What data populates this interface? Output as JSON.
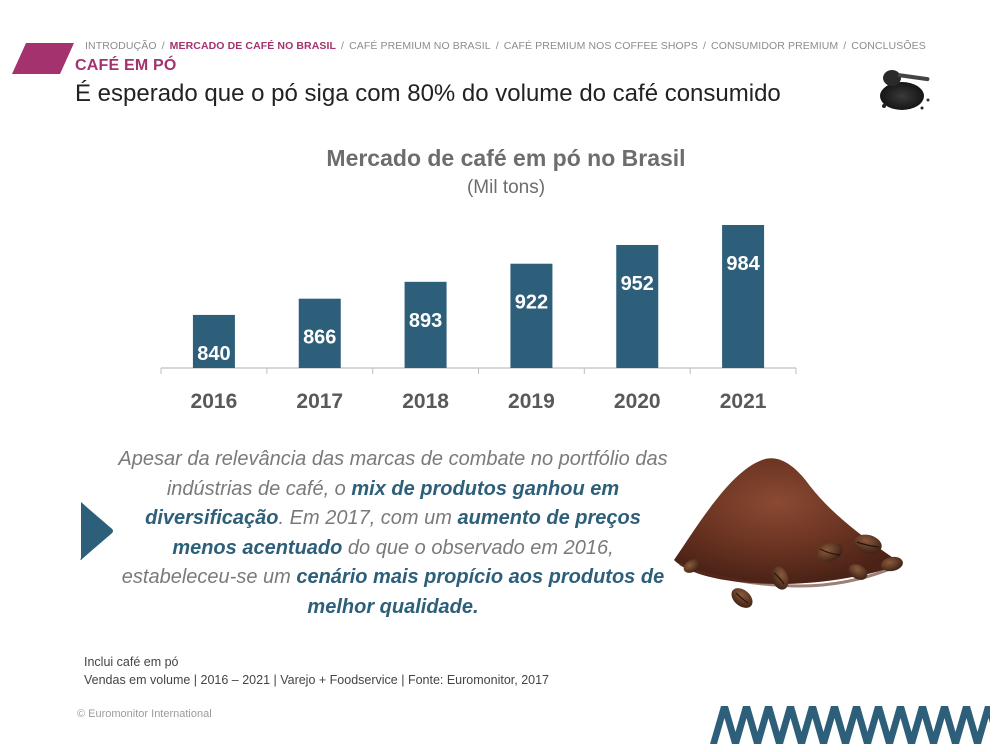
{
  "header": {
    "breadcrumb": [
      {
        "label": "Introdução",
        "active": false
      },
      {
        "label": "Mercado de café no Brasil",
        "active": true
      },
      {
        "label": "Café premium no Brasil",
        "active": false
      },
      {
        "label": "Café premium nos coffee shops",
        "active": false
      },
      {
        "label": "Consumidor premium",
        "active": false
      },
      {
        "label": "Conclusões",
        "active": false
      }
    ],
    "separator": "/",
    "section_label": "CAFÉ EM PÓ",
    "title": "É esperado que o pó siga com 80% do volume do café consumido"
  },
  "colors": {
    "accent": "#a3326f",
    "bar": "#2e5f7a",
    "highlight": "#2e5f7a",
    "muted_text": "#7a7a7a"
  },
  "chart_data": {
    "type": "bar",
    "title": "Mercado de café em pó no Brasil",
    "subtitle": "(Mil tons)",
    "categories": [
      "2016",
      "2017",
      "2018",
      "2019",
      "2020",
      "2021"
    ],
    "values": [
      840,
      866,
      893,
      922,
      952,
      984
    ],
    "data_labels": [
      "840",
      "866",
      "893",
      "922",
      "952",
      "984"
    ],
    "ylim": [
      755,
      1000
    ],
    "grid": false,
    "legend": "none"
  },
  "callout": {
    "segments": [
      {
        "text": "Apesar da relevância das marcas de combate no portfólio das indústrias de café, o ",
        "highlight": false
      },
      {
        "text": "mix de produtos ganhou em diversificação",
        "highlight": true
      },
      {
        "text": ". Em 2017, com um ",
        "highlight": false
      },
      {
        "text": "aumento de preços menos acentuado",
        "highlight": true
      },
      {
        "text": " do que o observado em 2016, estabeleceu-se um ",
        "highlight": false
      },
      {
        "text": "cenário mais propício aos produtos de melhor qualidade.",
        "highlight": true
      }
    ]
  },
  "footnote": {
    "line1": "Inclui café em pó",
    "line2": "Vendas em volume | 2016 – 2021 | Varejo + Foodservice | Fonte: Euromonitor, 2017"
  },
  "copyright": "© Euromonitor International",
  "icons": {
    "coffee_spoon": "coffee-spoon-icon",
    "coffee_pile": "coffee-pile-image",
    "arrow": "chevron-right-icon",
    "brand": "brand-stripes"
  }
}
